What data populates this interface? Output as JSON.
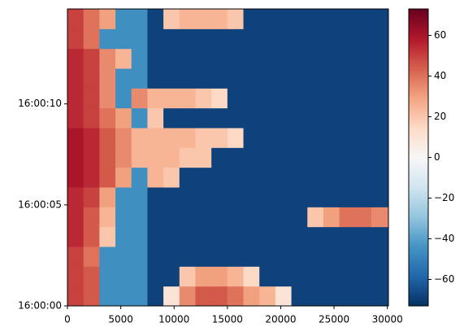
{
  "chart_data": {
    "type": "heatmap",
    "xbins": [
      0,
      1500,
      3000,
      4500,
      6000,
      7500,
      9000,
      10500,
      12000,
      13500,
      15000,
      16500,
      18000,
      19500,
      21000,
      22500,
      24000,
      25500,
      27000,
      28500,
      30100
    ],
    "ybins": [
      0,
      0.98,
      1.96,
      2.94,
      3.92,
      4.9,
      5.88,
      6.86,
      7.84,
      8.82,
      9.8,
      10.78,
      11.76,
      12.74,
      13.72,
      14.7
    ],
    "z": [
      [
        50,
        45,
        -45,
        -45,
        -45,
        -68,
        10,
        35,
        45,
        45,
        40,
        30,
        25,
        10,
        -68,
        -68,
        -68,
        -68,
        -68,
        -68
      ],
      [
        50,
        45,
        -45,
        -45,
        -45,
        -68,
        -68,
        20,
        30,
        30,
        25,
        15,
        -68,
        -68,
        -68,
        -68,
        -68,
        -68,
        -68,
        -68
      ],
      [
        50,
        40,
        -45,
        -45,
        -45,
        -68,
        -68,
        -68,
        -68,
        -68,
        -68,
        -68,
        -68,
        -68,
        -68,
        -68,
        -68,
        -68,
        -68,
        -68
      ],
      [
        55,
        45,
        20,
        -45,
        -45,
        -68,
        -68,
        -68,
        -68,
        -68,
        -68,
        -68,
        -68,
        -68,
        -68,
        -68,
        -68,
        -68,
        -68,
        -68
      ],
      [
        55,
        45,
        25,
        -45,
        -45,
        -68,
        -68,
        -68,
        -68,
        -68,
        -68,
        -68,
        -68,
        -68,
        -68,
        20,
        30,
        40,
        40,
        35
      ],
      [
        55,
        50,
        30,
        -45,
        -45,
        -68,
        -68,
        -68,
        -68,
        -68,
        -68,
        -68,
        -68,
        -68,
        -68,
        -68,
        -68,
        -68,
        -68,
        -68
      ],
      [
        60,
        55,
        45,
        30,
        -45,
        25,
        20,
        -68,
        -68,
        -68,
        -68,
        -68,
        -68,
        -68,
        -68,
        -68,
        -68,
        -68,
        -68,
        -68
      ],
      [
        60,
        55,
        45,
        35,
        25,
        25,
        25,
        20,
        20,
        -68,
        -68,
        -68,
        -68,
        -68,
        -68,
        -68,
        -68,
        -68,
        -68,
        -68
      ],
      [
        60,
        55,
        45,
        35,
        25,
        25,
        25,
        25,
        20,
        20,
        15,
        -68,
        -68,
        -68,
        -68,
        -68,
        -68,
        -68,
        -68,
        -68
      ],
      [
        55,
        50,
        40,
        30,
        -45,
        20,
        -68,
        -68,
        -68,
        -68,
        -68,
        -68,
        -68,
        -68,
        -68,
        -68,
        -68,
        -68,
        -68,
        -68
      ],
      [
        55,
        50,
        35,
        -45,
        35,
        25,
        25,
        25,
        20,
        15,
        -68,
        -68,
        -68,
        -68,
        -68,
        -68,
        -68,
        -68,
        -68,
        -68
      ],
      [
        55,
        50,
        35,
        -45,
        -45,
        -68,
        -68,
        -68,
        -68,
        -68,
        -68,
        -68,
        -68,
        -68,
        -68,
        -68,
        -68,
        -68,
        -68,
        -68
      ],
      [
        55,
        50,
        35,
        25,
        -45,
        -68,
        -68,
        -68,
        -68,
        -68,
        -68,
        -68,
        -68,
        -68,
        -68,
        -68,
        -68,
        -68,
        -68,
        -68
      ],
      [
        50,
        40,
        -45,
        -45,
        -45,
        -68,
        -68,
        -68,
        -68,
        -68,
        -68,
        -68,
        -68,
        -68,
        -68,
        -68,
        -68,
        -68,
        -68,
        -68
      ],
      [
        50,
        40,
        30,
        -45,
        -45,
        -68,
        20,
        25,
        25,
        25,
        20,
        -68,
        -68,
        -68,
        -68,
        -68,
        -68,
        -68,
        -68,
        -68
      ]
    ],
    "xlim": [
      0,
      30100
    ],
    "ylim": [
      0,
      14.7
    ],
    "xticks": [
      0,
      5000,
      10000,
      15000,
      20000,
      25000,
      30000
    ],
    "yticks": [
      {
        "value": 0,
        "label": "16:00:00"
      },
      {
        "value": 5,
        "label": "16:00:05"
      },
      {
        "value": 10,
        "label": "16:00:10"
      }
    ],
    "clim": [
      -73,
      73
    ],
    "cticks": [
      {
        "value": -60,
        "label": "−60"
      },
      {
        "value": -40,
        "label": "−40"
      },
      {
        "value": -20,
        "label": "−20"
      },
      0,
      20,
      40,
      60
    ],
    "colormap": [
      "#053061",
      "#2166ac",
      "#4393c3",
      "#92c5de",
      "#d1e5f0",
      "#f7f7f7",
      "#fddbc7",
      "#f4a582",
      "#d6604d",
      "#b2182b",
      "#67001f"
    ]
  }
}
